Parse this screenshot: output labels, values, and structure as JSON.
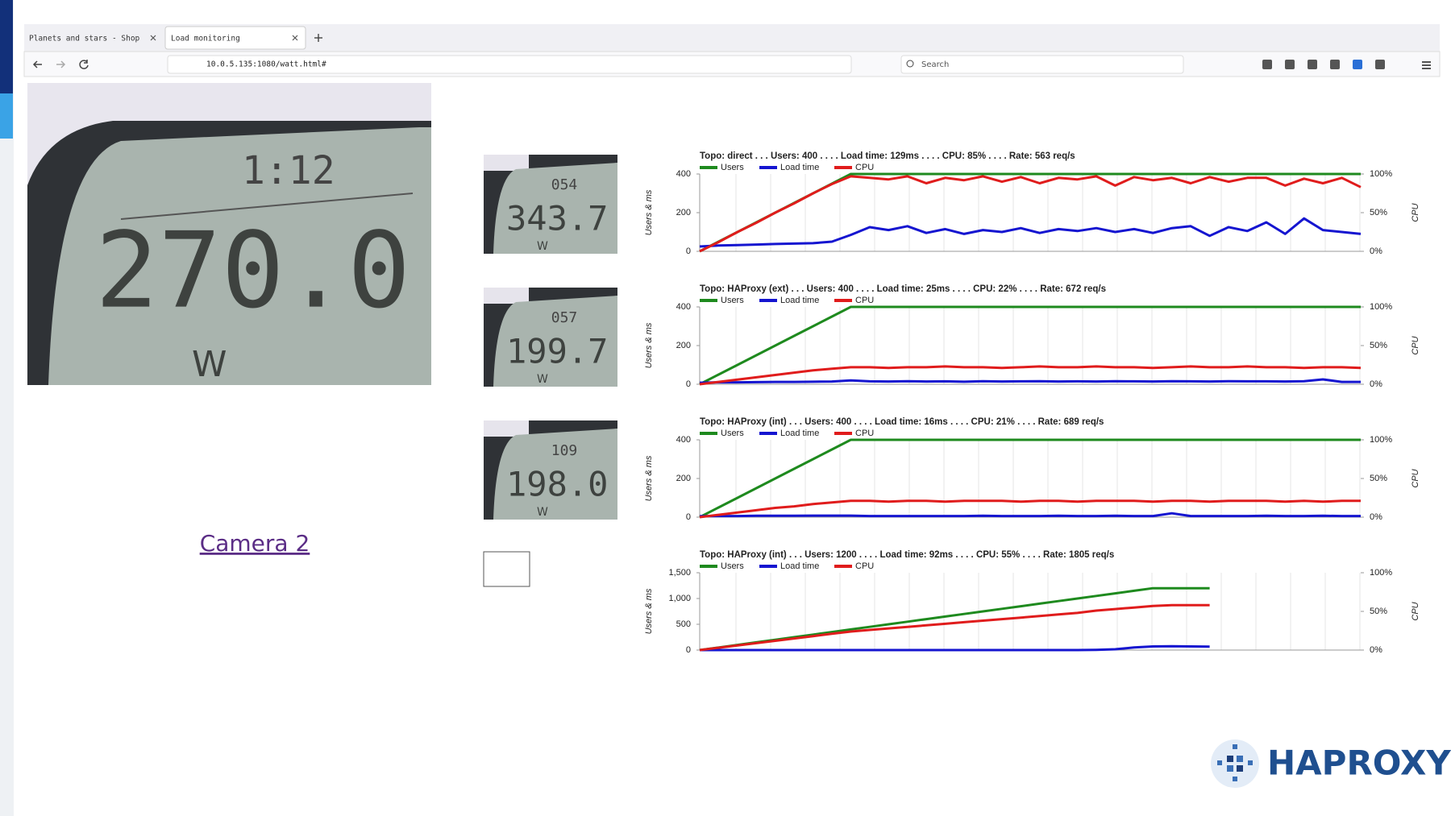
{
  "browser": {
    "tabs": [
      "Planets and stars - Shop",
      "Load monitoring"
    ],
    "url": "10.0.5.135:1080/watt.html#",
    "search": "Search"
  },
  "cameras": {
    "main": {
      "time": "1:12",
      "reading": "270.0",
      "unit": "W"
    },
    "thumbnails": [
      {
        "time": "054",
        "reading": "343.7",
        "unit": "W"
      },
      {
        "time": "057",
        "reading": "199.7",
        "unit": "W"
      },
      {
        "time": "109",
        "reading": "198.0",
        "unit": "W"
      }
    ],
    "link": "Camera 2"
  },
  "logo": "HAPROXY",
  "chart_data": [
    {
      "type": "line",
      "title": "Topo: direct . . . Users: 400 . . . . Load time: 129ms . . . . CPU: 85% . . . . Rate: 563 req/s",
      "y_label": "Users & ms",
      "y2_label": "CPU",
      "ylim": [
        0,
        400
      ],
      "yticks": [
        0,
        200,
        400
      ],
      "y2lim": [
        0,
        100
      ],
      "y2ticks": [
        {
          "value": 0,
          "label": "0%"
        },
        {
          "value": 50,
          "label": "50%"
        },
        {
          "value": 100,
          "label": "100%"
        }
      ],
      "series": [
        {
          "name": "Users",
          "color": "#1e8a1e",
          "values": [
            0,
            50,
            100,
            150,
            200,
            250,
            300,
            350,
            400,
            400,
            400,
            400,
            400,
            400,
            400,
            400,
            400,
            400,
            400,
            400,
            400,
            400,
            400,
            400,
            400,
            400,
            400,
            400,
            400,
            400,
            400,
            400,
            400,
            400,
            400,
            400
          ]
        },
        {
          "name": "Load time",
          "color": "#1515d0",
          "values": [
            25,
            30,
            32,
            35,
            38,
            40,
            42,
            50,
            85,
            125,
            110,
            130,
            95,
            115,
            90,
            110,
            100,
            120,
            95,
            115,
            105,
            120,
            100,
            115,
            95,
            120,
            130,
            80,
            125,
            105,
            150,
            90,
            170,
            110,
            100,
            90
          ]
        },
        {
          "name": "CPU",
          "color": "#e01c1c",
          "axis": "y2",
          "values": [
            0,
            12,
            25,
            37,
            50,
            62,
            75,
            87,
            97,
            95,
            93,
            97,
            88,
            95,
            92,
            97,
            90,
            96,
            88,
            95,
            93,
            97,
            85,
            96,
            92,
            95,
            88,
            96,
            90,
            95,
            95,
            85,
            94,
            88,
            95,
            83
          ]
        }
      ]
    },
    {
      "type": "line",
      "title": "Topo: HAProxy (ext) . . . Users: 400 . . . . Load time: 25ms . . . . CPU: 22% . . . . Rate: 672 req/s",
      "y_label": "Users & ms",
      "y2_label": "CPU",
      "ylim": [
        0,
        400
      ],
      "yticks": [
        0,
        200,
        400
      ],
      "y2lim": [
        0,
        100
      ],
      "y2ticks": [
        {
          "value": 0,
          "label": "0%"
        },
        {
          "value": 50,
          "label": "50%"
        },
        {
          "value": 100,
          "label": "100%"
        }
      ],
      "series": [
        {
          "name": "Users",
          "color": "#1e8a1e",
          "values": [
            0,
            50,
            100,
            150,
            200,
            250,
            300,
            350,
            400,
            400,
            400,
            400,
            400,
            400,
            400,
            400,
            400,
            400,
            400,
            400,
            400,
            400,
            400,
            400,
            400,
            400,
            400,
            400,
            400,
            400,
            400,
            400,
            400,
            400,
            400,
            400
          ]
        },
        {
          "name": "Load time",
          "color": "#1515d0",
          "values": [
            8,
            10,
            10,
            11,
            12,
            12,
            13,
            14,
            20,
            15,
            14,
            16,
            14,
            15,
            13,
            16,
            14,
            15,
            16,
            14,
            15,
            14,
            16,
            15,
            14,
            16,
            15,
            14,
            16,
            15,
            15,
            14,
            16,
            25,
            12,
            12
          ]
        },
        {
          "name": "CPU",
          "color": "#e01c1c",
          "axis": "y2",
          "values": [
            0,
            3,
            6,
            9,
            12,
            15,
            18,
            20,
            22,
            22,
            21,
            22,
            22,
            23,
            22,
            22,
            21,
            22,
            23,
            22,
            22,
            23,
            22,
            22,
            21,
            22,
            23,
            22,
            22,
            23,
            22,
            22,
            21,
            22,
            22,
            21
          ]
        }
      ]
    },
    {
      "type": "line",
      "title": "Topo: HAProxy (int)  . . . Users: 400 . . . . Load time: 16ms . . . . CPU: 21% . . . . Rate: 689 req/s",
      "y_label": "Users & ms",
      "y2_label": "CPU",
      "ylim": [
        0,
        400
      ],
      "yticks": [
        0,
        200,
        400
      ],
      "y2lim": [
        0,
        100
      ],
      "y2ticks": [
        {
          "value": 0,
          "label": "0%"
        },
        {
          "value": 50,
          "label": "50%"
        },
        {
          "value": 100,
          "label": "100%"
        }
      ],
      "series": [
        {
          "name": "Users",
          "color": "#1e8a1e",
          "values": [
            0,
            50,
            100,
            150,
            200,
            250,
            300,
            350,
            400,
            400,
            400,
            400,
            400,
            400,
            400,
            400,
            400,
            400,
            400,
            400,
            400,
            400,
            400,
            400,
            400,
            400,
            400,
            400,
            400,
            400,
            400,
            400,
            400,
            400,
            400,
            400
          ]
        },
        {
          "name": "Load time",
          "color": "#1515d0",
          "values": [
            5,
            6,
            6,
            7,
            7,
            7,
            8,
            8,
            8,
            6,
            6,
            6,
            6,
            6,
            6,
            7,
            6,
            6,
            6,
            7,
            6,
            6,
            7,
            6,
            6,
            20,
            6,
            6,
            6,
            6,
            7,
            6,
            6,
            7,
            6,
            6
          ]
        },
        {
          "name": "CPU",
          "color": "#e01c1c",
          "axis": "y2",
          "values": [
            0,
            3,
            6,
            9,
            12,
            14,
            17,
            19,
            21,
            21,
            20,
            21,
            21,
            20,
            21,
            21,
            21,
            20,
            21,
            21,
            20,
            21,
            21,
            21,
            20,
            21,
            21,
            20,
            21,
            21,
            21,
            20,
            21,
            20,
            21,
            21
          ]
        }
      ]
    },
    {
      "type": "line",
      "title": "Topo: HAProxy (int)  . . . Users: 1200 . . . . Load time: 92ms . . . . CPU: 55% . . . . Rate: 1805 req/s",
      "y_label": "Users & ms",
      "y2_label": "CPU",
      "ylim": [
        0,
        1500
      ],
      "yticks": [
        0,
        500,
        {
          "value": 1000,
          "label": "1,000"
        },
        {
          "value": 1500,
          "label": "1,500"
        }
      ],
      "y2lim": [
        0,
        100
      ],
      "y2ticks": [
        {
          "value": 0,
          "label": "0%"
        },
        {
          "value": 50,
          "label": "50%"
        },
        {
          "value": 100,
          "label": "100%"
        }
      ],
      "series": [
        {
          "name": "Users",
          "color": "#1e8a1e",
          "values": [
            0,
            50,
            100,
            150,
            200,
            250,
            300,
            350,
            400,
            450,
            500,
            550,
            600,
            650,
            700,
            750,
            800,
            850,
            900,
            950,
            1000,
            1050,
            1100,
            1150,
            1200,
            1200,
            1200,
            1200,
            null,
            null,
            null,
            null,
            null,
            null,
            null,
            null
          ]
        },
        {
          "name": "Load time",
          "color": "#1515d0",
          "values": [
            0,
            0,
            0,
            0,
            0,
            0,
            0,
            0,
            0,
            0,
            0,
            0,
            0,
            0,
            0,
            0,
            0,
            0,
            0,
            0,
            0,
            5,
            15,
            50,
            70,
            75,
            70,
            65,
            null,
            null,
            null,
            null,
            null,
            null,
            null,
            null
          ]
        },
        {
          "name": "CPU",
          "color": "#e01c1c",
          "axis": "y2",
          "values": [
            0,
            3,
            6,
            9,
            12,
            15,
            18,
            21,
            24,
            26,
            28,
            30,
            32,
            34,
            36,
            38,
            40,
            42,
            44,
            46,
            48,
            51,
            53,
            55,
            57,
            58,
            58,
            58,
            null,
            null,
            null,
            null,
            null,
            null,
            null,
            null
          ]
        }
      ]
    }
  ]
}
